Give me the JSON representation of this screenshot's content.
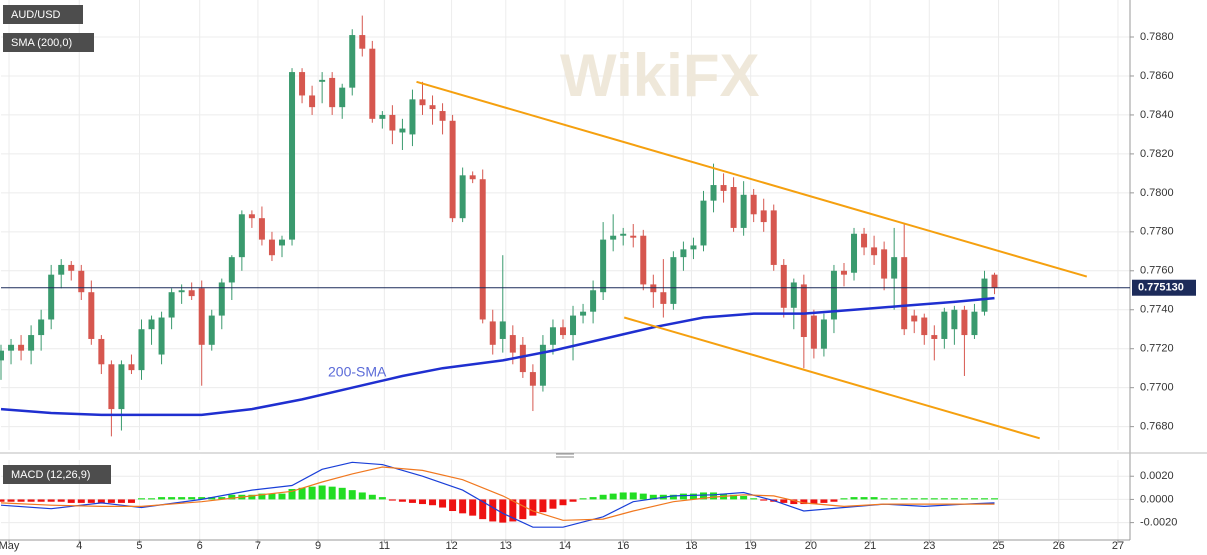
{
  "chart_data": [
    {
      "type": "candlestick",
      "title": "AUD/USD",
      "watermark": "WikiFX",
      "annotation": "200-SMA",
      "up_color": "#3a9a6e",
      "down_color": "#d6574f",
      "ohlc": [
        [
          0.7714,
          0.7722,
          0.7704,
          0.7719
        ],
        [
          0.7719,
          0.7725,
          0.7712,
          0.7722
        ],
        [
          0.7722,
          0.7727,
          0.7714,
          0.7719
        ],
        [
          0.7719,
          0.7732,
          0.7712,
          0.7727
        ],
        [
          0.7727,
          0.774,
          0.7719,
          0.7735
        ],
        [
          0.7735,
          0.7763,
          0.773,
          0.7758
        ],
        [
          0.7758,
          0.7766,
          0.7751,
          0.7763
        ],
        [
          0.7763,
          0.7765,
          0.7755,
          0.776
        ],
        [
          0.776,
          0.7763,
          0.7745,
          0.7749
        ],
        [
          0.7749,
          0.7755,
          0.7722,
          0.7725
        ],
        [
          0.7725,
          0.7727,
          0.7707,
          0.7712
        ],
        [
          0.7712,
          0.7714,
          0.7675,
          0.7689
        ],
        [
          0.7689,
          0.7714,
          0.7678,
          0.7712
        ],
        [
          0.7712,
          0.7717,
          0.7707,
          0.7709
        ],
        [
          0.7709,
          0.7735,
          0.7704,
          0.773
        ],
        [
          0.773,
          0.7737,
          0.7722,
          0.7735
        ],
        [
          0.7717,
          0.7739,
          0.7712,
          0.7736
        ],
        [
          0.7736,
          0.7751,
          0.773,
          0.7749
        ],
        [
          0.7749,
          0.7753,
          0.7743,
          0.775
        ],
        [
          0.775,
          0.7754,
          0.7745,
          0.7747
        ],
        [
          0.7751,
          0.7755,
          0.7701,
          0.7722
        ],
        [
          0.7722,
          0.774,
          0.7719,
          0.7737
        ],
        [
          0.7737,
          0.7756,
          0.773,
          0.7754
        ],
        [
          0.7754,
          0.7768,
          0.7745,
          0.7767
        ],
        [
          0.7767,
          0.7791,
          0.776,
          0.7789
        ],
        [
          0.7789,
          0.7791,
          0.7782,
          0.7787
        ],
        [
          0.7787,
          0.7793,
          0.7773,
          0.7776
        ],
        [
          0.7776,
          0.778,
          0.7765,
          0.7768
        ],
        [
          0.7773,
          0.7778,
          0.7767,
          0.7776
        ],
        [
          0.7776,
          0.7864,
          0.7773,
          0.7862
        ],
        [
          0.7862,
          0.7864,
          0.7846,
          0.785
        ],
        [
          0.785,
          0.7855,
          0.784,
          0.7844
        ],
        [
          0.7857,
          0.7862,
          0.7846,
          0.7858
        ],
        [
          0.7859,
          0.7862,
          0.784,
          0.7844
        ],
        [
          0.7844,
          0.7856,
          0.7838,
          0.7854
        ],
        [
          0.7854,
          0.7884,
          0.785,
          0.7881
        ],
        [
          0.7881,
          0.7891,
          0.787,
          0.7874
        ],
        [
          0.7874,
          0.7878,
          0.7836,
          0.7838
        ],
        [
          0.7838,
          0.7842,
          0.7833,
          0.784
        ],
        [
          0.784,
          0.7845,
          0.7825,
          0.7832
        ],
        [
          0.7831,
          0.7838,
          0.7822,
          0.7833
        ],
        [
          0.783,
          0.7853,
          0.7824,
          0.7848
        ],
        [
          0.7848,
          0.7857,
          0.784,
          0.7845
        ],
        [
          0.7845,
          0.785,
          0.7835,
          0.7843
        ],
        [
          0.7842,
          0.7846,
          0.783,
          0.7837
        ],
        [
          0.7837,
          0.784,
          0.7785,
          0.7787
        ],
        [
          0.7787,
          0.7813,
          0.7785,
          0.7809
        ],
        [
          0.7809,
          0.7811,
          0.7805,
          0.7807
        ],
        [
          0.7807,
          0.7812,
          0.7733,
          0.7735
        ],
        [
          0.7734,
          0.774,
          0.7717,
          0.7722
        ],
        [
          0.7725,
          0.7768,
          0.7718,
          0.7734
        ],
        [
          0.7727,
          0.7732,
          0.7712,
          0.7718
        ],
        [
          0.7722,
          0.7726,
          0.7705,
          0.7708
        ],
        [
          0.7708,
          0.7712,
          0.7688,
          0.7701
        ],
        [
          0.7701,
          0.7727,
          0.7698,
          0.7722
        ],
        [
          0.7722,
          0.7735,
          0.7717,
          0.7731
        ],
        [
          0.7731,
          0.7735,
          0.7725,
          0.7727
        ],
        [
          0.7727,
          0.7742,
          0.7714,
          0.7737
        ],
        [
          0.7737,
          0.7743,
          0.7733,
          0.7739
        ],
        [
          0.7739,
          0.7755,
          0.7733,
          0.775
        ],
        [
          0.7749,
          0.7785,
          0.7745,
          0.7776
        ],
        [
          0.7776,
          0.7789,
          0.777,
          0.7778
        ],
        [
          0.7778,
          0.7782,
          0.7773,
          0.7779
        ],
        [
          0.7778,
          0.7784,
          0.7772,
          0.7777
        ],
        [
          0.7778,
          0.7781,
          0.775,
          0.7753
        ],
        [
          0.7753,
          0.7758,
          0.7741,
          0.7749
        ],
        [
          0.7749,
          0.7766,
          0.7736,
          0.7743
        ],
        [
          0.7743,
          0.777,
          0.774,
          0.7767
        ],
        [
          0.7767,
          0.7775,
          0.776,
          0.7771
        ],
        [
          0.7771,
          0.7777,
          0.7766,
          0.7773
        ],
        [
          0.7773,
          0.7801,
          0.777,
          0.7796
        ],
        [
          0.7796,
          0.7815,
          0.779,
          0.7804
        ],
        [
          0.7804,
          0.781,
          0.7795,
          0.7801
        ],
        [
          0.7803,
          0.7808,
          0.778,
          0.7782
        ],
        [
          0.7782,
          0.7806,
          0.7778,
          0.7799
        ],
        [
          0.7799,
          0.7802,
          0.7785,
          0.7789
        ],
        [
          0.7791,
          0.7797,
          0.778,
          0.7785
        ],
        [
          0.7791,
          0.7794,
          0.776,
          0.7763
        ],
        [
          0.7763,
          0.7766,
          0.7736,
          0.7741
        ],
        [
          0.7741,
          0.7756,
          0.773,
          0.7754
        ],
        [
          0.7753,
          0.7758,
          0.771,
          0.7726
        ],
        [
          0.7737,
          0.774,
          0.7715,
          0.772
        ],
        [
          0.772,
          0.7738,
          0.7716,
          0.7735
        ],
        [
          0.7735,
          0.7763,
          0.7728,
          0.776
        ],
        [
          0.776,
          0.7764,
          0.7752,
          0.7758
        ],
        [
          0.7759,
          0.7782,
          0.7755,
          0.7779
        ],
        [
          0.7779,
          0.7782,
          0.7768,
          0.7772
        ],
        [
          0.7772,
          0.7778,
          0.7763,
          0.7768
        ],
        [
          0.7771,
          0.7775,
          0.775,
          0.7756
        ],
        [
          0.7756,
          0.7782,
          0.774,
          0.7767
        ],
        [
          0.7767,
          0.7784,
          0.7727,
          0.773
        ],
        [
          0.7737,
          0.774,
          0.7728,
          0.7734
        ],
        [
          0.7736,
          0.7738,
          0.7722,
          0.7727
        ],
        [
          0.7727,
          0.7732,
          0.7714,
          0.7725
        ],
        [
          0.7725,
          0.7741,
          0.772,
          0.7739
        ],
        [
          0.773,
          0.7742,
          0.7722,
          0.774
        ],
        [
          0.774,
          0.7742,
          0.7706,
          0.7727
        ],
        [
          0.7727,
          0.7743,
          0.7725,
          0.7739
        ],
        [
          0.7739,
          0.776,
          0.7737,
          0.7756
        ],
        [
          0.7758,
          0.7759,
          0.7748,
          0.77513
        ]
      ],
      "series": [
        {
          "name": "SMA (200,0)",
          "color": "#1f2fd0",
          "x": [
            0,
            5,
            10,
            15,
            20,
            25,
            30,
            35,
            40,
            44,
            50,
            55,
            60,
            65,
            70,
            75,
            80,
            85,
            90,
            95,
            99
          ],
          "values": [
            0.7689,
            0.7687,
            0.7686,
            0.7686,
            0.7686,
            0.7689,
            0.7694,
            0.77,
            0.7706,
            0.771,
            0.7714,
            0.7719,
            0.7725,
            0.7731,
            0.7736,
            0.7738,
            0.7738,
            0.774,
            0.7742,
            0.7744,
            0.7746
          ]
        }
      ],
      "trendlines": [
        {
          "color": "#f5a00f",
          "x": [
            41.4,
            108.2
          ],
          "values": [
            0.7857,
            0.7757
          ]
        },
        {
          "color": "#f5a00f",
          "x": [
            62.1,
            103.5
          ],
          "values": [
            0.7736,
            0.7674
          ]
        }
      ],
      "last_price": 0.77513,
      "last_price_label": "0.775130",
      "xlim": [
        0,
        112.5
      ],
      "ylim": [
        0.7668,
        0.7899
      ],
      "yticks": [
        {
          "value": 0.768,
          "label": "0.7680"
        },
        {
          "value": 0.77,
          "label": "0.7700"
        },
        {
          "value": 0.772,
          "label": "0.7720"
        },
        {
          "value": 0.774,
          "label": "0.7740"
        },
        {
          "value": 0.776,
          "label": "0.7760"
        },
        {
          "value": 0.778,
          "label": "0.7780"
        },
        {
          "value": 0.78,
          "label": "0.7800"
        },
        {
          "value": 0.782,
          "label": "0.7820"
        },
        {
          "value": 0.784,
          "label": "0.7840"
        },
        {
          "value": 0.786,
          "label": "0.7860"
        },
        {
          "value": 0.788,
          "label": "0.7880"
        }
      ],
      "grid": true
    },
    {
      "type": "macd",
      "title": "MACD (12,26,9)",
      "histogram": {
        "pos_color": "#22dd22",
        "neg_color": "#ee1111",
        "values": [
          -0.0002,
          -0.0002,
          -0.0002,
          -0.0002,
          -0.0002,
          -0.0002,
          -0.0002,
          -0.0003,
          -0.0003,
          -0.0003,
          -0.0003,
          -0.0003,
          -0.0003,
          -0.0003,
          0.0001,
          0.0001,
          0.0002,
          0.0002,
          0.0002,
          0.0002,
          0.0002,
          0.0002,
          0.0002,
          0.0004,
          0.0004,
          0.0004,
          0.0005,
          0.0005,
          0.0005,
          0.0009,
          0.001,
          0.0011,
          0.0012,
          0.0011,
          0.001,
          0.0008,
          0.0006,
          0.0004,
          0.0002,
          -0.0001,
          -0.0002,
          -0.0003,
          -0.0004,
          -0.0005,
          -0.0007,
          -0.001,
          -0.0012,
          -0.0014,
          -0.0017,
          -0.0019,
          -0.002,
          -0.0019,
          -0.0017,
          -0.0014,
          -0.0011,
          -0.0008,
          -0.0005,
          -0.0002,
          0.0001,
          0.0002,
          0.0004,
          0.0005,
          0.0006,
          0.0006,
          0.0005,
          0.0004,
          0.0004,
          0.0004,
          0.0005,
          0.0005,
          0.0006,
          0.0006,
          0.0005,
          0.0004,
          0.0003,
          0.0001,
          -0.0001,
          -0.0002,
          -0.0003,
          -0.0004,
          -0.0004,
          -0.0004,
          -0.0003,
          -0.0002,
          0.0001,
          0.0002,
          0.0002,
          0.0002,
          0.0001,
          0.0001,
          0.0001,
          0.0001,
          0.0001,
          0.0001,
          0.0001,
          0.0001,
          0.0001,
          0.0001,
          0.0001,
          0.0001
        ]
      },
      "series": [
        {
          "color": "#1a3fd8",
          "x": [
            0,
            5,
            10,
            14,
            20,
            25,
            29,
            32,
            35,
            38,
            42,
            46,
            50,
            53,
            56,
            60,
            63,
            67,
            71,
            74,
            77,
            80,
            84,
            88,
            92,
            96,
            99
          ],
          "values": [
            -0.0005,
            -0.0008,
            -0.0003,
            -0.0007,
            0.0,
            0.0008,
            0.0012,
            0.0026,
            0.0032,
            0.003,
            0.002,
            0.0008,
            -0.0012,
            -0.0024,
            -0.0024,
            -0.0015,
            -0.0002,
            0.0003,
            0.0004,
            0.0006,
            -0.0001,
            -0.001,
            -0.0007,
            -0.0004,
            -0.0006,
            -0.0004,
            -0.0003
          ]
        },
        {
          "color": "#f07820",
          "x": [
            0,
            5,
            10,
            14,
            20,
            25,
            29,
            32,
            35,
            38,
            42,
            46,
            50,
            53,
            56,
            60,
            63,
            67,
            71,
            74,
            77,
            80,
            84,
            88,
            92,
            96,
            99
          ],
          "values": [
            -0.0003,
            -0.0005,
            -0.0006,
            -0.0006,
            -0.0002,
            0.0003,
            0.0007,
            0.0015,
            0.0022,
            0.0028,
            0.0025,
            0.0017,
            0.0003,
            -0.001,
            -0.0018,
            -0.0017,
            -0.001,
            -0.0002,
            0.0002,
            0.0004,
            0.0003,
            -0.0003,
            -0.0006,
            -0.0004,
            -0.0004,
            -0.0004,
            -0.0004
          ]
        }
      ],
      "xlim": [
        0,
        112.5
      ],
      "ylim": [
        -0.0035,
        0.0034
      ],
      "yticks": [
        {
          "value": -0.002,
          "label": "-0.0020"
        },
        {
          "value": 0,
          "label": "0.0000"
        },
        {
          "value": 0.002,
          "label": "0.0020"
        }
      ],
      "xticks": [
        {
          "value": 0.8,
          "label": "May"
        },
        {
          "value": 7.8,
          "label": "4"
        },
        {
          "value": 13.8,
          "label": "5"
        },
        {
          "value": 19.8,
          "label": "6"
        },
        {
          "value": 25.6,
          "label": "7"
        },
        {
          "value": 31.6,
          "label": "9"
        },
        {
          "value": 38.2,
          "label": "11"
        },
        {
          "value": 44.9,
          "label": "12"
        },
        {
          "value": 50.3,
          "label": "13"
        },
        {
          "value": 56.2,
          "label": "14"
        },
        {
          "value": 62,
          "label": "16"
        },
        {
          "value": 68.8,
          "label": "18"
        },
        {
          "value": 74.7,
          "label": "19"
        },
        {
          "value": 80.7,
          "label": "20"
        },
        {
          "value": 86.6,
          "label": "21"
        },
        {
          "value": 92.5,
          "label": "23"
        },
        {
          "value": 99.4,
          "label": "25"
        },
        {
          "value": 105.4,
          "label": "26"
        },
        {
          "value": 111.3,
          "label": "27"
        }
      ],
      "grid": true
    }
  ]
}
